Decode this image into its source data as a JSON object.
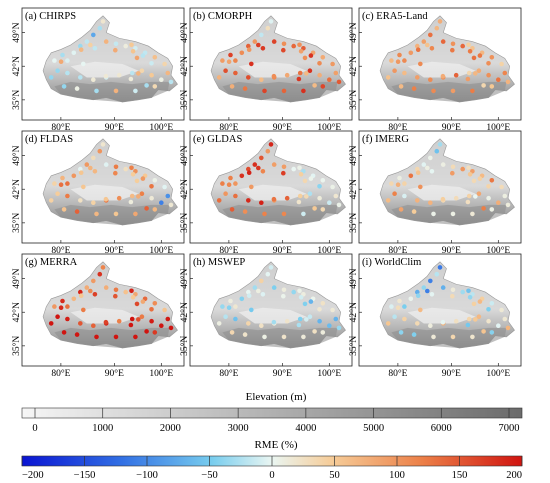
{
  "panels": [
    {
      "label": "(a) CHIRPS",
      "pattern": "chirps"
    },
    {
      "label": "(b) CMORPH",
      "pattern": "cmorph"
    },
    {
      "label": "(c) ERA5-Land",
      "pattern": "era5"
    },
    {
      "label": "(d) FLDAS",
      "pattern": "fldas"
    },
    {
      "label": "(e) GLDAS",
      "pattern": "gldas"
    },
    {
      "label": "(f) IMERG",
      "pattern": "imerg"
    },
    {
      "label": "(g) MERRA",
      "pattern": "merra"
    },
    {
      "label": "(h) MSWEP",
      "pattern": "mswep"
    },
    {
      "label": "(i) WorldClim",
      "pattern": "worldclim"
    }
  ],
  "axes": {
    "y_ticks": [
      "49°N",
      "42°N",
      "35°N"
    ],
    "x_ticks": [
      "80°E",
      "90°E",
      "100°E"
    ]
  },
  "elevation_legend": {
    "title": "Elevation (m)",
    "ticks": [
      "0",
      "1000",
      "2000",
      "3000",
      "4000",
      "5000",
      "6000",
      "7000"
    ],
    "range": [
      0,
      7000
    ],
    "colors": [
      "#f4f4f4",
      "#6e6e6e"
    ]
  },
  "rme_legend": {
    "title": "RME (%)",
    "ticks": [
      "−200",
      "−150",
      "−100",
      "−50",
      "0",
      "50",
      "100",
      "150",
      "200"
    ],
    "range": [
      -200,
      200
    ],
    "colors": [
      "#0a14d2",
      "#3c78e6",
      "#7ed2f2",
      "#e0f2f8",
      "#f6d3a0",
      "#f2a264",
      "#e65028",
      "#d21410"
    ]
  }
}
